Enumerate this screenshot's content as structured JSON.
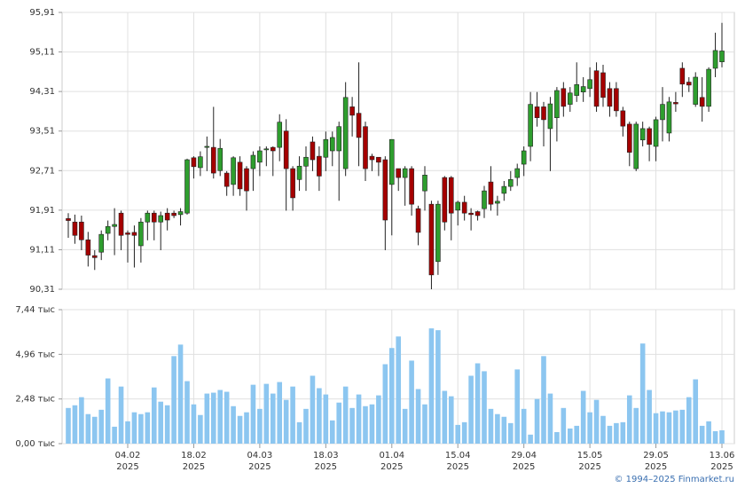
{
  "chart_data": [
    {
      "type": "candlestick",
      "up_color": "#2e9e2e",
      "down_color": "#a50000",
      "open": [
        91.74,
        91.67,
        91.67,
        91.31,
        90.99,
        91.06,
        91.44,
        91.58,
        91.85,
        91.45,
        91.46,
        91.19,
        91.67,
        91.85,
        91.67,
        91.85,
        91.85,
        91.82,
        91.85,
        92.97,
        92.77,
        93.18,
        93.18,
        92.71,
        92.66,
        92.43,
        92.88,
        92.75,
        92.75,
        92.88,
        93.13,
        93.18,
        93.18,
        93.51,
        92.75,
        92.53,
        92.8,
        93.29,
        93.0,
        92.98,
        93.11,
        93.11,
        92.75,
        94.0,
        93.87,
        93.6,
        93.0,
        92.98,
        92.93,
        92.43,
        92.75,
        92.57,
        92.75,
        91.94,
        92.3,
        92.03,
        90.87,
        92.57,
        92.57,
        91.91,
        92.07,
        91.85,
        91.88,
        91.94,
        92.48,
        92.05,
        92.25,
        92.39,
        92.57,
        92.84,
        93.2,
        94.0,
        94.0,
        93.56,
        93.78,
        94.37,
        94.05,
        94.23,
        94.3,
        94.37,
        94.73,
        94.69,
        94.37,
        94.37,
        93.92,
        93.65,
        92.75,
        93.33,
        93.56,
        93.2,
        93.74,
        93.47,
        94.09,
        94.78,
        94.5,
        94.05,
        94.19,
        94.01,
        94.78,
        94.91
      ],
      "high": [
        91.85,
        91.82,
        91.8,
        91.47,
        91.1,
        91.5,
        91.7,
        91.95,
        91.9,
        91.5,
        91.6,
        91.75,
        91.9,
        91.9,
        91.88,
        91.95,
        91.9,
        91.95,
        92.95,
        93.0,
        93.1,
        93.4,
        94.0,
        93.35,
        92.7,
        93.0,
        93.0,
        92.8,
        93.1,
        93.2,
        93.2,
        93.2,
        93.85,
        93.75,
        92.8,
        93.0,
        93.2,
        93.4,
        93.2,
        93.5,
        93.5,
        93.7,
        94.5,
        94.2,
        94.9,
        93.7,
        93.05,
        92.95,
        93.0,
        93.34,
        92.75,
        92.8,
        92.8,
        92.0,
        92.8,
        92.1,
        92.1,
        92.6,
        92.6,
        92.1,
        92.2,
        91.95,
        91.9,
        92.4,
        92.8,
        92.2,
        92.5,
        92.7,
        92.85,
        93.2,
        94.3,
        94.3,
        94.1,
        94.2,
        94.4,
        94.5,
        94.4,
        94.9,
        94.6,
        94.8,
        94.9,
        94.85,
        94.5,
        94.5,
        94.0,
        93.7,
        93.7,
        93.7,
        93.6,
        93.8,
        94.4,
        94.2,
        94.3,
        94.9,
        94.6,
        94.7,
        94.6,
        94.8,
        95.5,
        95.7
      ],
      "low": [
        91.35,
        91.23,
        91.1,
        90.77,
        90.7,
        90.9,
        91.3,
        91.0,
        91.1,
        90.85,
        90.75,
        90.85,
        91.3,
        91.3,
        91.1,
        91.5,
        91.75,
        91.6,
        91.82,
        92.55,
        92.6,
        92.7,
        92.55,
        92.6,
        92.2,
        92.2,
        92.2,
        91.9,
        92.3,
        92.6,
        92.8,
        92.6,
        92.9,
        91.9,
        91.9,
        92.3,
        92.3,
        92.7,
        92.3,
        92.7,
        92.8,
        92.1,
        92.6,
        93.4,
        92.8,
        92.5,
        92.7,
        92.6,
        91.1,
        91.4,
        92.3,
        92.0,
        91.8,
        91.2,
        91.9,
        90.31,
        90.6,
        91.5,
        91.3,
        91.6,
        91.7,
        91.5,
        91.7,
        91.75,
        91.9,
        91.8,
        92.1,
        92.3,
        92.4,
        92.6,
        92.9,
        93.6,
        93.2,
        92.7,
        93.3,
        93.8,
        93.9,
        94.1,
        94.1,
        94.2,
        93.9,
        94.0,
        93.8,
        93.8,
        93.4,
        92.8,
        92.7,
        93.2,
        92.9,
        92.9,
        93.3,
        93.3,
        93.9,
        94.2,
        94.3,
        94.0,
        93.7,
        93.9,
        94.6,
        94.8
      ],
      "close": [
        91.7,
        91.4,
        91.31,
        91.0,
        90.95,
        91.42,
        91.58,
        91.62,
        91.4,
        91.42,
        91.4,
        91.67,
        91.85,
        91.67,
        91.8,
        91.71,
        91.8,
        91.88,
        92.93,
        92.79,
        92.99,
        93.2,
        92.66,
        93.16,
        92.39,
        92.97,
        92.34,
        92.3,
        93.02,
        93.11,
        93.15,
        93.11,
        93.69,
        92.75,
        92.16,
        92.8,
        92.98,
        92.93,
        92.6,
        93.34,
        93.38,
        93.6,
        94.19,
        93.83,
        93.38,
        92.75,
        92.93,
        92.88,
        91.71,
        93.34,
        92.57,
        92.75,
        92.03,
        91.46,
        92.62,
        90.6,
        92.03,
        91.67,
        91.85,
        92.07,
        91.85,
        91.82,
        91.8,
        92.3,
        92.03,
        92.09,
        92.39,
        92.53,
        92.75,
        93.11,
        94.05,
        93.78,
        93.74,
        94.06,
        94.33,
        94.01,
        94.28,
        94.45,
        94.41,
        94.55,
        94.01,
        94.19,
        94.01,
        93.92,
        93.61,
        93.08,
        93.65,
        93.56,
        93.24,
        93.74,
        94.05,
        94.1,
        94.06,
        94.46,
        94.44,
        94.6,
        94.01,
        94.76,
        95.14,
        95.13
      ],
      "ylim": [
        90.31,
        95.91
      ],
      "yticks": [
        {
          "value": 90.31,
          "label": "90,31"
        },
        {
          "value": 91.11,
          "label": "91,11"
        },
        {
          "value": 91.91,
          "label": "91,91"
        },
        {
          "value": 92.71,
          "label": "92,71"
        },
        {
          "value": 93.51,
          "label": "93,51"
        },
        {
          "value": 94.31,
          "label": "94,31"
        },
        {
          "value": 95.11,
          "label": "95,11"
        },
        {
          "value": 95.91,
          "label": "95,91"
        }
      ],
      "grid": true
    },
    {
      "type": "bar",
      "color": "#8cc6f0",
      "categories": [
        null,
        null,
        null,
        null,
        null,
        null,
        null,
        null,
        null,
        "04.02\n2025",
        null,
        null,
        null,
        null,
        null,
        null,
        null,
        null,
        null,
        "18.02\n2025",
        null,
        null,
        null,
        null,
        null,
        null,
        null,
        null,
        null,
        "04.03\n2025",
        null,
        null,
        null,
        null,
        null,
        null,
        null,
        null,
        null,
        "18.03\n2025",
        null,
        null,
        null,
        null,
        null,
        null,
        null,
        null,
        null,
        "01.04\n2025",
        null,
        null,
        null,
        null,
        null,
        null,
        null,
        null,
        null,
        "15.04\n2025",
        null,
        null,
        null,
        null,
        null,
        null,
        null,
        null,
        null,
        "29.04\n2025",
        null,
        null,
        null,
        null,
        null,
        null,
        null,
        null,
        null,
        "15.05\n2025",
        null,
        null,
        null,
        null,
        null,
        null,
        null,
        null,
        null,
        "29.05\n2025",
        null,
        null,
        null,
        null,
        null,
        null,
        null,
        null,
        null,
        "13.06\n2025"
      ],
      "values": [
        1.98,
        2.13,
        2.58,
        1.64,
        1.49,
        1.88,
        3.62,
        0.94,
        3.17,
        1.24,
        1.74,
        1.64,
        1.74,
        3.12,
        2.33,
        2.13,
        4.86,
        5.5,
        3.47,
        2.18,
        1.59,
        2.78,
        2.83,
        2.98,
        2.88,
        2.08,
        1.54,
        1.74,
        3.27,
        1.93,
        3.32,
        2.78,
        3.42,
        2.43,
        3.17,
        1.19,
        1.93,
        3.77,
        3.08,
        2.73,
        1.29,
        2.28,
        3.17,
        1.98,
        2.73,
        2.08,
        2.18,
        2.68,
        4.41,
        5.31,
        5.95,
        1.93,
        4.61,
        3.03,
        2.18,
        6.4,
        6.3,
        2.93,
        2.63,
        1.04,
        1.19,
        3.77,
        4.46,
        4.02,
        1.93,
        1.64,
        1.49,
        1.14,
        4.12,
        1.93,
        0.5,
        2.48,
        4.86,
        2.78,
        0.64,
        1.98,
        0.84,
        0.99,
        2.93,
        1.74,
        2.43,
        1.54,
        0.99,
        1.14,
        1.19,
        2.68,
        1.98,
        5.56,
        2.98,
        1.69,
        1.79,
        1.74,
        1.84,
        1.88,
        2.58,
        3.57,
        0.99,
        1.24,
        0.69,
        0.74
      ],
      "ylim": [
        0,
        7.44
      ],
      "yticks": [
        {
          "value": 0,
          "label": "0,00 тыс"
        },
        {
          "value": 2.48,
          "label": "2,48 тыс"
        },
        {
          "value": 4.96,
          "label": "4,96 тыс"
        },
        {
          "value": 7.44,
          "label": "7,44 тыс"
        }
      ],
      "grid": true
    }
  ],
  "credit": "© 1994–2025 Finmarket.ru"
}
